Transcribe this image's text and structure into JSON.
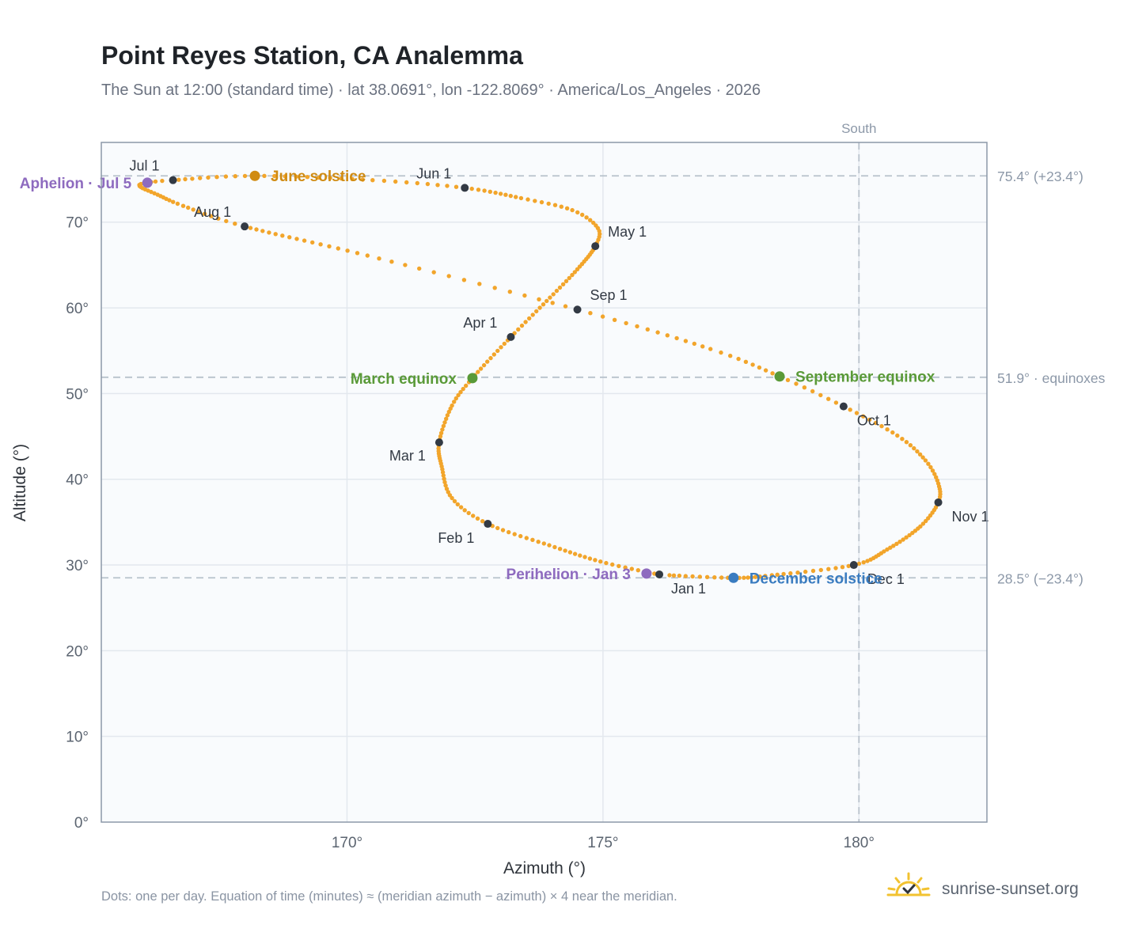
{
  "title": "Point Reyes Station, CA Analemma",
  "subtitle": "The Sun at 12:00 (standard time) · lat 38.0691°, lon -122.8069° · America/Los_Angeles · 2026",
  "footnote": "Dots: one per day. Equation of time (minutes) ≈ (meridian azimuth − azimuth) × 4 near the meridian.",
  "brand": "sunrise-sunset.org",
  "colors": {
    "curve": "#f2a52b",
    "month_marker": "#333a44",
    "solstice_june": "#d08b12",
    "equinox": "#5a9a38",
    "solstice_december": "#3a7cc0",
    "apsis": "#8e6bbf",
    "reference": "#b8c2cc",
    "plot_bg": "#f9fbfd",
    "grid": "#e3e8ee",
    "frame": "#8c98a8",
    "axis_text": "#5b6470"
  },
  "chart_data": {
    "type": "scatter",
    "xlabel": "Azimuth (°)",
    "ylabel": "Altitude (°)",
    "xlim": [
      165.2,
      182.5
    ],
    "ylim": [
      0,
      79.3
    ],
    "xticks": [
      170,
      175,
      180
    ],
    "yticks": [
      0,
      10,
      20,
      30,
      40,
      50,
      60,
      70
    ],
    "xtick_labels": [
      "170°",
      "175°",
      "180°"
    ],
    "ytick_labels": [
      "0°",
      "10°",
      "20°",
      "30°",
      "40°",
      "50°",
      "60°",
      "70°"
    ],
    "grid": true,
    "meridian": {
      "azimuth": 180,
      "label": "South"
    },
    "reference_lines": [
      {
        "altitude": 75.4,
        "label": "75.4° (+23.4°)"
      },
      {
        "altitude": 51.9,
        "label": "51.9° · equinoxes"
      },
      {
        "altitude": 28.5,
        "label": "28.5° (−23.4°)"
      }
    ],
    "daily_points": [
      {
        "doy": 0,
        "az": 176.08,
        "alt": 28.9
      },
      {
        "doy": 10,
        "az": 174.95,
        "alt": 30.4
      },
      {
        "doy": 20,
        "az": 173.95,
        "alt": 32.3
      },
      {
        "doy": 31,
        "az": 172.75,
        "alt": 34.8
      },
      {
        "doy": 40,
        "az": 172.05,
        "alt": 37.8
      },
      {
        "doy": 50,
        "az": 171.85,
        "alt": 41.5
      },
      {
        "doy": 59,
        "az": 171.8,
        "alt": 44.3
      },
      {
        "doy": 70,
        "az": 172.05,
        "alt": 48.6
      },
      {
        "doy": 78,
        "az": 172.45,
        "alt": 51.8
      },
      {
        "doy": 90,
        "az": 173.2,
        "alt": 56.6
      },
      {
        "doy": 100,
        "az": 173.9,
        "alt": 60.8
      },
      {
        "doy": 110,
        "az": 174.5,
        "alt": 64.5
      },
      {
        "doy": 120,
        "az": 174.85,
        "alt": 67.2
      },
      {
        "doy": 126,
        "az": 174.9,
        "alt": 69.3
      },
      {
        "doy": 133,
        "az": 174.4,
        "alt": 71.4
      },
      {
        "doy": 141,
        "az": 173.4,
        "alt": 72.8
      },
      {
        "doy": 151,
        "az": 172.3,
        "alt": 74.0
      },
      {
        "doy": 160,
        "az": 170.5,
        "alt": 74.9
      },
      {
        "doy": 171,
        "az": 168.2,
        "alt": 75.4
      },
      {
        "doy": 181,
        "az": 166.6,
        "alt": 74.9
      },
      {
        "doy": 185,
        "az": 166.1,
        "alt": 74.6
      },
      {
        "doy": 189,
        "az": 165.95,
        "alt": 74.2
      },
      {
        "doy": 196,
        "az": 166.3,
        "alt": 73.2
      },
      {
        "doy": 203,
        "az": 166.8,
        "alt": 71.9
      },
      {
        "doy": 212,
        "az": 168.0,
        "alt": 69.5
      },
      {
        "doy": 228,
        "az": 170.4,
        "alt": 66.1
      },
      {
        "doy": 243,
        "az": 174.5,
        "alt": 59.8
      },
      {
        "doy": 256,
        "az": 177.1,
        "alt": 55.2
      },
      {
        "doy": 265,
        "az": 178.45,
        "alt": 52.0
      },
      {
        "doy": 273,
        "az": 179.7,
        "alt": 48.5
      },
      {
        "doy": 282,
        "az": 180.75,
        "alt": 45.1
      },
      {
        "doy": 290,
        "az": 181.3,
        "alt": 42.2
      },
      {
        "doy": 297,
        "az": 181.55,
        "alt": 39.5
      },
      {
        "doy": 304,
        "az": 181.55,
        "alt": 37.3
      },
      {
        "doy": 313,
        "az": 181.2,
        "alt": 34.5
      },
      {
        "doy": 324,
        "az": 180.55,
        "alt": 31.8
      },
      {
        "doy": 334,
        "az": 179.9,
        "alt": 30.0
      },
      {
        "doy": 346,
        "az": 178.3,
        "alt": 28.8
      },
      {
        "doy": 354,
        "az": 177.55,
        "alt": 28.5
      },
      {
        "doy": 364,
        "az": 176.3,
        "alt": 28.8
      }
    ],
    "month_markers": [
      {
        "label": "Jan 1",
        "az": 176.1,
        "alt": 28.9,
        "dx": 15,
        "dy": 24,
        "anchor": "start"
      },
      {
        "label": "Feb 1",
        "az": 172.75,
        "alt": 34.8,
        "dx": -17,
        "dy": 24,
        "anchor": "end"
      },
      {
        "label": "Mar 1",
        "az": 171.8,
        "alt": 44.3,
        "dx": -17,
        "dy": 23,
        "anchor": "end"
      },
      {
        "label": "Apr 1",
        "az": 173.2,
        "alt": 56.6,
        "dx": -17,
        "dy": -12,
        "anchor": "end"
      },
      {
        "label": "May 1",
        "az": 174.85,
        "alt": 67.2,
        "dx": 16,
        "dy": -12,
        "anchor": "start"
      },
      {
        "label": "Jun 1",
        "az": 172.3,
        "alt": 74.0,
        "dx": -17,
        "dy": -12,
        "anchor": "end"
      },
      {
        "label": "Jul 1",
        "az": 166.6,
        "alt": 74.9,
        "dx": -17,
        "dy": -12,
        "anchor": "end"
      },
      {
        "label": "Aug 1",
        "az": 168.0,
        "alt": 69.5,
        "dx": -17,
        "dy": -12,
        "anchor": "end"
      },
      {
        "label": "Sep 1",
        "az": 174.5,
        "alt": 59.8,
        "dx": 16,
        "dy": -12,
        "anchor": "start"
      },
      {
        "label": "Oct 1",
        "az": 179.7,
        "alt": 48.5,
        "dx": 17,
        "dy": 24,
        "anchor": "start"
      },
      {
        "label": "Nov 1",
        "az": 181.55,
        "alt": 37.3,
        "dx": 17,
        "dy": 24,
        "anchor": "start"
      },
      {
        "label": "Dec 1",
        "az": 179.9,
        "alt": 30.0,
        "dx": 17,
        "dy": 24,
        "anchor": "start"
      }
    ],
    "events": [
      {
        "label": "June solstice",
        "az": 168.2,
        "alt": 75.4,
        "color": "#d08b12",
        "dx": 20,
        "dy": 7,
        "anchor": "start"
      },
      {
        "label": "March equinox",
        "az": 172.45,
        "alt": 51.8,
        "color": "#5a9a38",
        "dx": -20,
        "dy": 7,
        "anchor": "end"
      },
      {
        "label": "September equinox",
        "az": 178.45,
        "alt": 52.0,
        "color": "#5a9a38",
        "dx": 20,
        "dy": 7,
        "anchor": "start"
      },
      {
        "label": "December solstice",
        "az": 177.55,
        "alt": 28.5,
        "color": "#3a7cc0",
        "dx": 20,
        "dy": 7,
        "anchor": "start"
      },
      {
        "label": "Aphelion · Jul 5",
        "az": 166.1,
        "alt": 74.6,
        "color": "#8e6bbf",
        "dx": -20,
        "dy": 7,
        "anchor": "end"
      },
      {
        "label": "Perihelion · Jan 3",
        "az": 175.85,
        "alt": 29.0,
        "color": "#8e6bbf",
        "dx": -20,
        "dy": 7,
        "anchor": "end"
      }
    ]
  }
}
